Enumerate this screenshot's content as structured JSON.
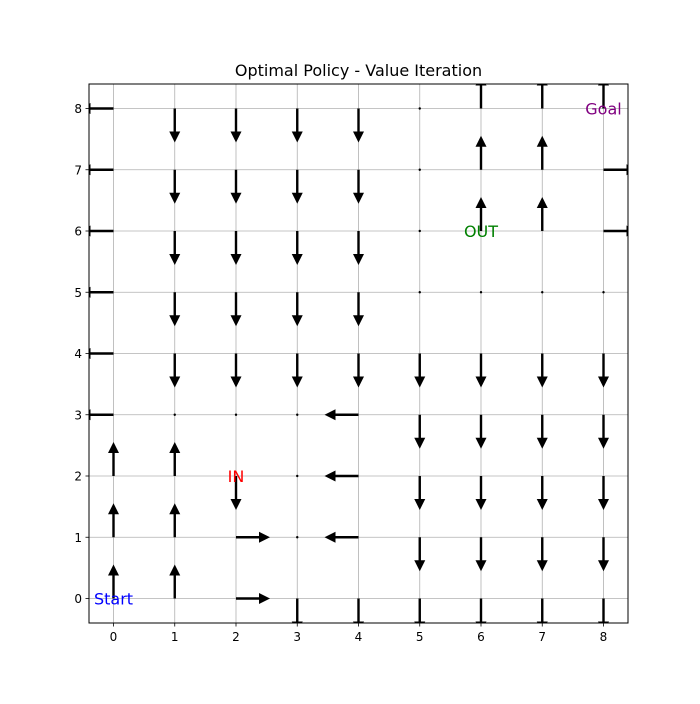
{
  "chart_data": {
    "type": "quiver",
    "title": "Optimal Policy - Value Iteration",
    "xlabel": "",
    "ylabel": "",
    "xlim": [
      -0.4,
      8.4
    ],
    "ylim": [
      -0.4,
      8.4
    ],
    "xticks": [
      "0",
      "1",
      "2",
      "3",
      "4",
      "5",
      "6",
      "7",
      "8"
    ],
    "yticks": [
      "0",
      "1",
      "2",
      "3",
      "4",
      "5",
      "6",
      "7",
      "8"
    ],
    "grid": true,
    "arrow_color": "#000000",
    "policy": [
      {
        "x": 0,
        "y": 0,
        "action": "up"
      },
      {
        "x": 1,
        "y": 0,
        "action": "up"
      },
      {
        "x": 2,
        "y": 0,
        "action": "right"
      },
      {
        "x": 3,
        "y": 0,
        "action": "down"
      },
      {
        "x": 4,
        "y": 0,
        "action": "down"
      },
      {
        "x": 5,
        "y": 0,
        "action": "down"
      },
      {
        "x": 6,
        "y": 0,
        "action": "down"
      },
      {
        "x": 7,
        "y": 0,
        "action": "down"
      },
      {
        "x": 8,
        "y": 0,
        "action": "down"
      },
      {
        "x": 0,
        "y": 1,
        "action": "up"
      },
      {
        "x": 1,
        "y": 1,
        "action": "up"
      },
      {
        "x": 2,
        "y": 1,
        "action": "right"
      },
      {
        "x": 3,
        "y": 1,
        "action": "none"
      },
      {
        "x": 4,
        "y": 1,
        "action": "left"
      },
      {
        "x": 5,
        "y": 1,
        "action": "down"
      },
      {
        "x": 6,
        "y": 1,
        "action": "down"
      },
      {
        "x": 7,
        "y": 1,
        "action": "down"
      },
      {
        "x": 8,
        "y": 1,
        "action": "down"
      },
      {
        "x": 0,
        "y": 2,
        "action": "up"
      },
      {
        "x": 1,
        "y": 2,
        "action": "up"
      },
      {
        "x": 2,
        "y": 2,
        "action": "down"
      },
      {
        "x": 3,
        "y": 2,
        "action": "none"
      },
      {
        "x": 4,
        "y": 2,
        "action": "left"
      },
      {
        "x": 5,
        "y": 2,
        "action": "down"
      },
      {
        "x": 6,
        "y": 2,
        "action": "down"
      },
      {
        "x": 7,
        "y": 2,
        "action": "down"
      },
      {
        "x": 8,
        "y": 2,
        "action": "down"
      },
      {
        "x": 0,
        "y": 3,
        "action": "left"
      },
      {
        "x": 1,
        "y": 3,
        "action": "none"
      },
      {
        "x": 2,
        "y": 3,
        "action": "none"
      },
      {
        "x": 3,
        "y": 3,
        "action": "none"
      },
      {
        "x": 4,
        "y": 3,
        "action": "left"
      },
      {
        "x": 5,
        "y": 3,
        "action": "down"
      },
      {
        "x": 6,
        "y": 3,
        "action": "down"
      },
      {
        "x": 7,
        "y": 3,
        "action": "down"
      },
      {
        "x": 8,
        "y": 3,
        "action": "down"
      },
      {
        "x": 0,
        "y": 4,
        "action": "left"
      },
      {
        "x": 1,
        "y": 4,
        "action": "down"
      },
      {
        "x": 2,
        "y": 4,
        "action": "down"
      },
      {
        "x": 3,
        "y": 4,
        "action": "down"
      },
      {
        "x": 4,
        "y": 4,
        "action": "down"
      },
      {
        "x": 5,
        "y": 4,
        "action": "down"
      },
      {
        "x": 6,
        "y": 4,
        "action": "down"
      },
      {
        "x": 7,
        "y": 4,
        "action": "down"
      },
      {
        "x": 8,
        "y": 4,
        "action": "down"
      },
      {
        "x": 0,
        "y": 5,
        "action": "left"
      },
      {
        "x": 1,
        "y": 5,
        "action": "down"
      },
      {
        "x": 2,
        "y": 5,
        "action": "down"
      },
      {
        "x": 3,
        "y": 5,
        "action": "down"
      },
      {
        "x": 4,
        "y": 5,
        "action": "down"
      },
      {
        "x": 5,
        "y": 5,
        "action": "none"
      },
      {
        "x": 6,
        "y": 5,
        "action": "none"
      },
      {
        "x": 7,
        "y": 5,
        "action": "none"
      },
      {
        "x": 8,
        "y": 5,
        "action": "none"
      },
      {
        "x": 0,
        "y": 6,
        "action": "left"
      },
      {
        "x": 1,
        "y": 6,
        "action": "down"
      },
      {
        "x": 2,
        "y": 6,
        "action": "down"
      },
      {
        "x": 3,
        "y": 6,
        "action": "down"
      },
      {
        "x": 4,
        "y": 6,
        "action": "down"
      },
      {
        "x": 5,
        "y": 6,
        "action": "none"
      },
      {
        "x": 6,
        "y": 6,
        "action": "up"
      },
      {
        "x": 7,
        "y": 6,
        "action": "up"
      },
      {
        "x": 8,
        "y": 6,
        "action": "right"
      },
      {
        "x": 0,
        "y": 7,
        "action": "left"
      },
      {
        "x": 1,
        "y": 7,
        "action": "down"
      },
      {
        "x": 2,
        "y": 7,
        "action": "down"
      },
      {
        "x": 3,
        "y": 7,
        "action": "down"
      },
      {
        "x": 4,
        "y": 7,
        "action": "down"
      },
      {
        "x": 5,
        "y": 7,
        "action": "none"
      },
      {
        "x": 6,
        "y": 7,
        "action": "up"
      },
      {
        "x": 7,
        "y": 7,
        "action": "up"
      },
      {
        "x": 8,
        "y": 7,
        "action": "right"
      },
      {
        "x": 0,
        "y": 8,
        "action": "left"
      },
      {
        "x": 1,
        "y": 8,
        "action": "down"
      },
      {
        "x": 2,
        "y": 8,
        "action": "down"
      },
      {
        "x": 3,
        "y": 8,
        "action": "down"
      },
      {
        "x": 4,
        "y": 8,
        "action": "down"
      },
      {
        "x": 5,
        "y": 8,
        "action": "none"
      },
      {
        "x": 6,
        "y": 8,
        "action": "up"
      },
      {
        "x": 7,
        "y": 8,
        "action": "up"
      },
      {
        "x": 8,
        "y": 8,
        "action": "up"
      }
    ],
    "annotations": [
      {
        "text": "Start",
        "x": 0,
        "y": 0,
        "color": "#0000ff"
      },
      {
        "text": "IN",
        "x": 2,
        "y": 2,
        "color": "#ff0000"
      },
      {
        "text": "OUT",
        "x": 6,
        "y": 6,
        "color": "#008000"
      },
      {
        "text": "Goal",
        "x": 8,
        "y": 8,
        "color": "#800080"
      }
    ]
  }
}
